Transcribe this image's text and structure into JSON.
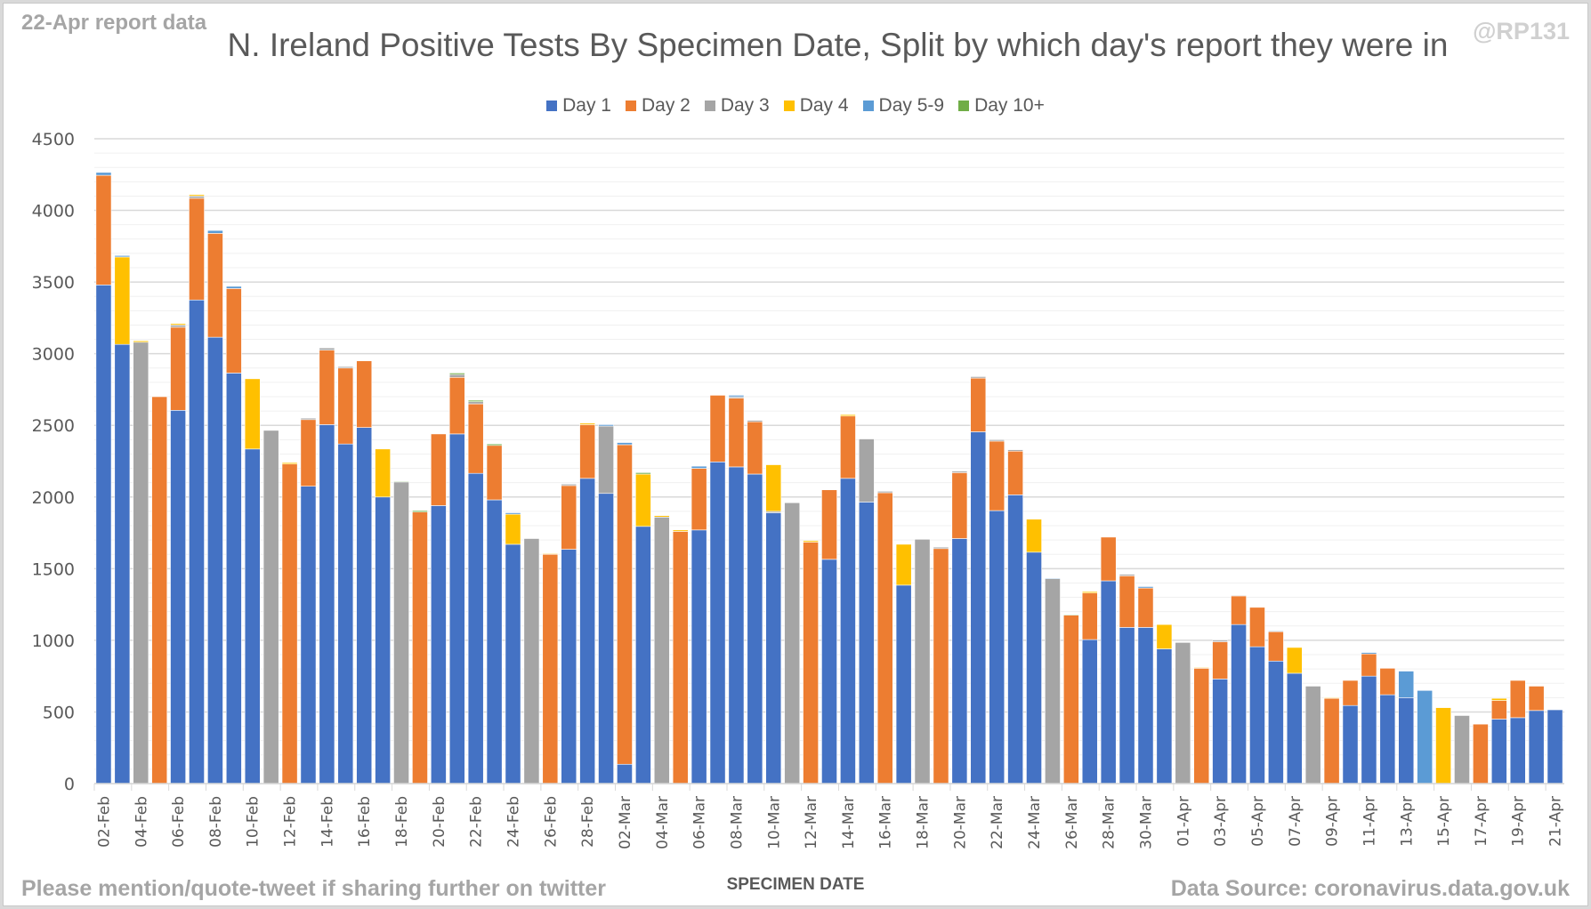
{
  "header": {
    "report_label": "22-Apr report data",
    "handle": "@RP131"
  },
  "footer": {
    "share_note": "Please mention/quote-tweet if sharing further on twitter",
    "source": "Data Source: coronavirus.data.gov.uk"
  },
  "chart_data": {
    "type": "bar",
    "stacked": true,
    "title": "N. Ireland Positive Tests By Specimen Date, Split by which day's report they were in",
    "xlabel": "SPECIMEN DATE",
    "ylabel": "",
    "ylim": [
      0,
      4500
    ],
    "yticks": [
      0,
      500,
      1000,
      1500,
      2000,
      2500,
      3000,
      3500,
      4000,
      4500
    ],
    "grid": true,
    "legend_position": "top",
    "categories": [
      "02-Feb",
      "03-Feb",
      "04-Feb",
      "05-Feb",
      "06-Feb",
      "07-Feb",
      "08-Feb",
      "09-Feb",
      "10-Feb",
      "11-Feb",
      "12-Feb",
      "13-Feb",
      "14-Feb",
      "15-Feb",
      "16-Feb",
      "17-Feb",
      "18-Feb",
      "19-Feb",
      "20-Feb",
      "21-Feb",
      "22-Feb",
      "23-Feb",
      "24-Feb",
      "25-Feb",
      "26-Feb",
      "27-Feb",
      "28-Feb",
      "01-Mar",
      "02-Mar",
      "03-Mar",
      "04-Mar",
      "05-Mar",
      "06-Mar",
      "07-Mar",
      "08-Mar",
      "09-Mar",
      "10-Mar",
      "11-Mar",
      "12-Mar",
      "13-Mar",
      "14-Mar",
      "15-Mar",
      "16-Mar",
      "17-Mar",
      "18-Mar",
      "19-Mar",
      "20-Mar",
      "21-Mar",
      "22-Mar",
      "23-Mar",
      "24-Mar",
      "25-Mar",
      "26-Mar",
      "27-Mar",
      "28-Mar",
      "29-Mar",
      "30-Mar",
      "31-Mar",
      "01-Apr",
      "02-Apr",
      "03-Apr",
      "04-Apr",
      "05-Apr",
      "06-Apr",
      "07-Apr",
      "08-Apr",
      "09-Apr",
      "10-Apr",
      "11-Apr",
      "12-Apr",
      "13-Apr",
      "14-Apr",
      "15-Apr",
      "16-Apr",
      "17-Apr",
      "18-Apr",
      "19-Apr",
      "20-Apr",
      "21-Apr"
    ],
    "tick_labels_shown_every": 2,
    "series": [
      {
        "name": "Day 1",
        "color": "#4472c4",
        "values": [
          3480,
          3065,
          0,
          0,
          2605,
          3375,
          3115,
          2865,
          2335,
          0,
          0,
          2075,
          2505,
          2370,
          2485,
          2000,
          0,
          0,
          1940,
          2440,
          2165,
          1980,
          1670,
          0,
          0,
          1635,
          2130,
          2025,
          135,
          1795,
          0,
          0,
          1770,
          2245,
          2210,
          2160,
          1890,
          0,
          0,
          1565,
          2130,
          1965,
          0,
          1385,
          0,
          0,
          1710,
          2455,
          1905,
          2015,
          1615,
          0,
          0,
          1005,
          1415,
          1090,
          1090,
          940,
          0,
          0,
          730,
          1110,
          955,
          855,
          770,
          0,
          0,
          545,
          750,
          620,
          600,
          0,
          0,
          0,
          0,
          450,
          460,
          510,
          515
        ]
      },
      {
        "name": "Day 2",
        "color": "#ed7d31",
        "values": [
          765,
          0,
          0,
          2700,
          580,
          710,
          725,
          590,
          0,
          0,
          2230,
          465,
          520,
          530,
          465,
          0,
          0,
          1895,
          500,
          395,
          485,
          380,
          0,
          0,
          1600,
          445,
          375,
          0,
          2230,
          0,
          0,
          1760,
          430,
          465,
          480,
          365,
          0,
          0,
          1685,
          485,
          435,
          0,
          2030,
          0,
          0,
          1640,
          460,
          375,
          485,
          305,
          0,
          0,
          1175,
          325,
          305,
          360,
          275,
          0,
          0,
          805,
          260,
          200,
          275,
          205,
          0,
          0,
          595,
          175,
          155,
          185,
          0,
          0,
          0,
          0,
          415,
          130,
          260,
          170,
          0
        ]
      },
      {
        "name": "Day 3",
        "color": "#a5a5a5",
        "values": [
          0,
          0,
          3080,
          0,
          15,
          15,
          0,
          0,
          0,
          2465,
          0,
          10,
          15,
          10,
          0,
          0,
          2105,
          0,
          0,
          20,
          15,
          0,
          0,
          1710,
          0,
          10,
          0,
          470,
          0,
          0,
          1860,
          0,
          0,
          0,
          10,
          10,
          10,
          1960,
          0,
          0,
          0,
          440,
          10,
          0,
          1705,
          10,
          10,
          10,
          10,
          10,
          0,
          1430,
          0,
          0,
          0,
          10,
          0,
          0,
          985,
          0,
          10,
          5,
          0,
          0,
          0,
          680,
          0,
          0,
          0,
          0,
          0,
          0,
          0,
          475,
          0,
          0,
          0,
          0,
          0
        ]
      },
      {
        "name": "Day 4",
        "color": "#ffc000",
        "values": [
          0,
          610,
          10,
          0,
          10,
          10,
          0,
          0,
          490,
          0,
          10,
          0,
          0,
          0,
          0,
          335,
          0,
          0,
          0,
          0,
          0,
          0,
          210,
          0,
          5,
          0,
          10,
          0,
          0,
          365,
          10,
          10,
          0,
          0,
          0,
          0,
          325,
          0,
          10,
          0,
          10,
          0,
          0,
          285,
          0,
          0,
          0,
          0,
          0,
          0,
          230,
          0,
          0,
          10,
          0,
          0,
          0,
          170,
          0,
          5,
          0,
          0,
          0,
          0,
          180,
          0,
          5,
          0,
          0,
          0,
          0,
          0,
          530,
          0,
          0,
          15,
          0,
          0,
          0
        ]
      },
      {
        "name": "Day 5-9",
        "color": "#5b9bd5",
        "values": [
          20,
          10,
          0,
          0,
          0,
          0,
          20,
          15,
          0,
          0,
          0,
          0,
          0,
          0,
          0,
          0,
          0,
          0,
          0,
          0,
          0,
          0,
          10,
          0,
          0,
          0,
          0,
          10,
          15,
          0,
          0,
          0,
          15,
          0,
          10,
          0,
          0,
          0,
          0,
          0,
          0,
          0,
          0,
          0,
          0,
          0,
          0,
          0,
          0,
          0,
          0,
          5,
          0,
          0,
          0,
          0,
          10,
          0,
          0,
          0,
          0,
          0,
          0,
          5,
          0,
          0,
          0,
          0,
          10,
          0,
          185,
          650,
          0,
          0,
          0,
          0,
          0,
          0,
          0
        ]
      },
      {
        "name": "Day 10+",
        "color": "#70ad47",
        "values": [
          0,
          0,
          0,
          0,
          0,
          0,
          0,
          0,
          0,
          0,
          0,
          0,
          0,
          0,
          0,
          0,
          5,
          10,
          0,
          10,
          10,
          10,
          0,
          0,
          0,
          0,
          0,
          0,
          0,
          10,
          0,
          0,
          0,
          0,
          0,
          0,
          0,
          0,
          0,
          0,
          0,
          0,
          0,
          0,
          0,
          0,
          0,
          0,
          0,
          0,
          0,
          0,
          5,
          0,
          0,
          0,
          0,
          0,
          0,
          0,
          0,
          0,
          0,
          0,
          0,
          0,
          0,
          0,
          0,
          0,
          0,
          0,
          0,
          0,
          0,
          0,
          0,
          0,
          0
        ]
      }
    ]
  }
}
